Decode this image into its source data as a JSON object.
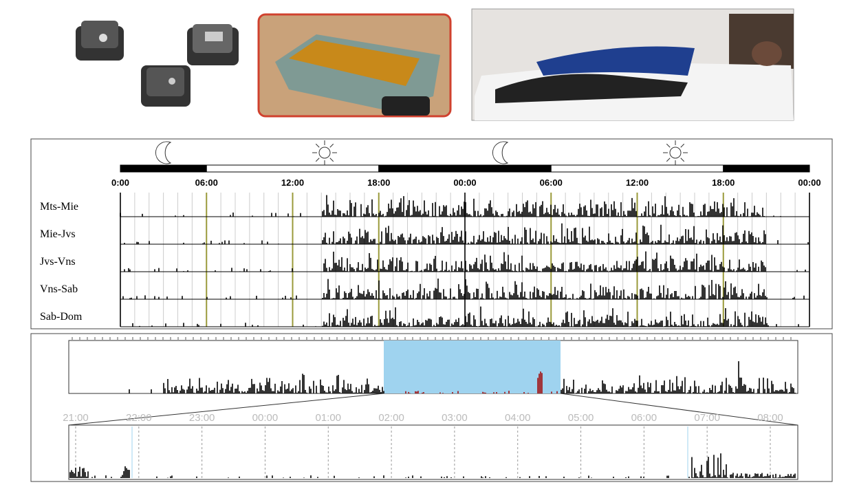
{
  "actogram": {
    "time_labels": [
      "0:00",
      "06:00",
      "12:00",
      "18:00",
      "00:00",
      "06:00",
      "12:00",
      "18:00",
      "00:00"
    ],
    "rows": [
      "Mts-Mie",
      "Mie-Jvs",
      "Jvs-Vns",
      "Vns-Sab",
      "Sab-Dom"
    ]
  },
  "zoom": {
    "time_labels": [
      "21:00",
      "22:00",
      "23:00",
      "00:00",
      "01:00",
      "02:00",
      "03:00",
      "04:00",
      "05:00",
      "06:00",
      "07:00",
      "08:00"
    ]
  }
}
